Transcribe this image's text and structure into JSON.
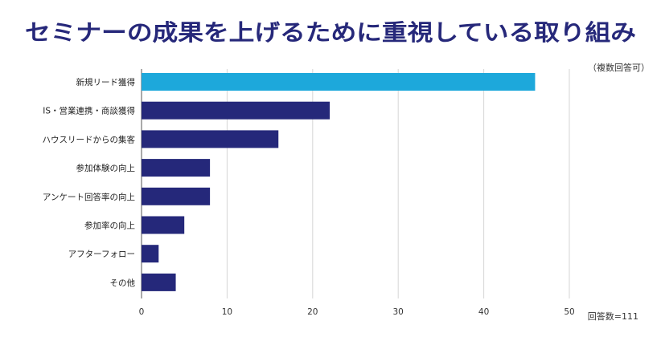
{
  "chart_data": {
    "type": "bar",
    "orientation": "horizontal",
    "title": "セミナーの成果を上げるために重視している取り組み",
    "note": "（複数回答可）",
    "sample_size": "回答数=111",
    "categories": [
      "新規リード獲得",
      "IS・営業連携・商談獲得",
      "ハウスリードからの集客",
      "参加体験の向上",
      "アンケート回答率の向上",
      "参加率の向上",
      "アフターフォロー",
      "その他"
    ],
    "values": [
      46,
      22,
      16,
      8,
      8,
      5,
      2,
      4
    ],
    "xlim": [
      0,
      50
    ],
    "xticks": [
      0,
      10,
      20,
      30,
      40,
      50
    ],
    "grid": true,
    "highlight_index": 0,
    "colors": {
      "highlight": "#1da8db",
      "bar": "#25287a",
      "title": "#26287a"
    }
  }
}
